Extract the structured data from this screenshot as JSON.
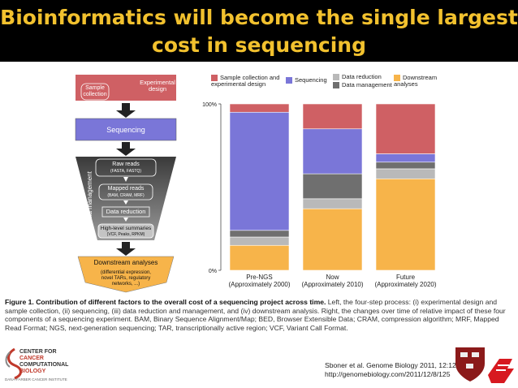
{
  "slide": {
    "title_line1": "Bioinformatics will become the single largest",
    "title_line2": "cost in sequencing"
  },
  "flowchart": {
    "sample_collection": "Sample collection",
    "experimental_design": "Experimental design",
    "sequencing": "Sequencing",
    "data_management": "Data management",
    "raw_reads": "Raw reads",
    "raw_reads_formats": "(FASTA, FASTQ)",
    "mapped_reads": "Mapped reads",
    "mapped_reads_formats": "(BAM, CRAM, MRF)",
    "data_reduction": "Data reduction",
    "high_level_summaries": "High-level summaries",
    "summaries_formats": "(VCF, Peaks, RPKM)",
    "downstream_analyses": "Downstream analyses",
    "downstream_detail_1": "(differential expression,",
    "downstream_detail_2": "novel TARs, regulatory",
    "downstream_detail_3": "networks, ...)"
  },
  "legend": {
    "sample": "Sample collection and experimental design",
    "sequencing": "Sequencing",
    "data_reduction": "Data reduction",
    "data_management": "Data management",
    "downstream": "Downstream analyses"
  },
  "chart_data": {
    "type": "bar",
    "stacked": true,
    "ylabel": "",
    "ylim": [
      0,
      100
    ],
    "yticks": [
      "0%",
      "100%"
    ],
    "categories": [
      "Pre-NGS (Approximately 2000)",
      "Now (Approximately 2010)",
      "Future (Approximately 2020)"
    ],
    "category_lines": [
      [
        "Pre-NGS",
        "(Approximately 2000)"
      ],
      [
        "Now",
        "(Approximately 2010)"
      ],
      [
        "Future",
        "(Approximately 2020)"
      ]
    ],
    "series": [
      {
        "name": "Downstream analyses",
        "color": "#f7b44a",
        "values": [
          15,
          37,
          55
        ]
      },
      {
        "name": "Data reduction",
        "color": "#b9b9b9",
        "values": [
          5,
          6,
          6
        ]
      },
      {
        "name": "Data management",
        "color": "#6f6f6f",
        "values": [
          4,
          15,
          4
        ]
      },
      {
        "name": "Sequencing",
        "color": "#7a76d8",
        "values": [
          71,
          27,
          5
        ]
      },
      {
        "name": "Sample collection and experimental design",
        "color": "#cf6064",
        "values": [
          5,
          15,
          30
        ]
      }
    ]
  },
  "caption": {
    "label": "Figure 1. Contribution of different factors to the overall cost of a sequencing project across time.",
    "text": " Left, the four-step process: (i) experimental design and sample collection, (ii) sequencing, (iii) data reduction and management, and (iv) downstream analysis. Right, the changes over time of relative impact of these four components of a sequencing experiment. BAM, Binary Sequence Alignment/Map; BED, Browser Extensible Data; CRAM, compression algorithm; MRF, Mapped Read Format; NGS, next-generation sequencing; TAR, transcriptionally active region; VCF, Variant Call Format."
  },
  "reference": {
    "line1": "Sboner et al. Genome Biology 2011, 12:125",
    "line2": "http://genomebiology.com/2011/12/8/125"
  },
  "logo": {
    "l1": "CENTER FOR",
    "l2": "CANCER",
    "l3": "COMPUTATIONAL",
    "l4": "BIOLOGY",
    "l5": "DANA-FARBER CANCER INSTITUTE"
  },
  "colors": {
    "title": "#f2c12e",
    "banner": "#000000",
    "sequencing_box": "#7a76d8",
    "sample_box": "#cf6064",
    "downstream_box": "#f7b44a"
  }
}
